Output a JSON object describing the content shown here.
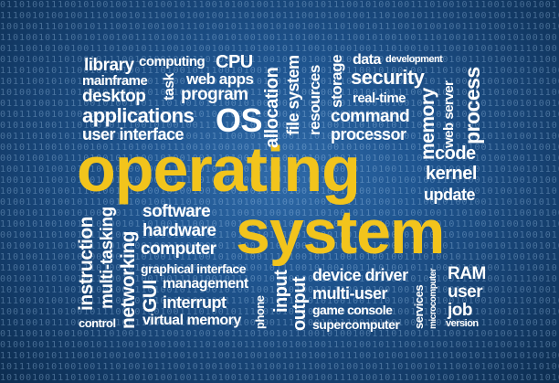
{
  "background": {
    "binary_text": "0110100111001010010011101001011100101001001110100101110010100100111010010111001010010011101001011100101001001110100101110010100100111010010111001010010011101001"
  },
  "colors": {
    "background": "#1f5590",
    "word_white": "#ffffff",
    "word_yellow": "#f2c41c"
  },
  "words": {
    "library": "library",
    "computing": "computing",
    "cpu": "CPU",
    "mainframe": "mainframe",
    "task": "task",
    "web_apps": "web apps",
    "desktop": "desktop",
    "program": "program",
    "os": "OS",
    "applications": "applications",
    "user_interface": "user interface",
    "allocation": "allocation",
    "file_system": "file system",
    "resources": "resources",
    "storage": "storage",
    "data": "data",
    "development": "development",
    "security": "security",
    "real_time": "real-time",
    "command": "command",
    "processor": "processor",
    "memory": "memory",
    "web_server": "web server",
    "process": "process",
    "operating": "operating",
    "code": "code",
    "kernel": "kernel",
    "update": "update",
    "instruction": "instruction",
    "multi_tasking": "multi-tasking",
    "networking": "networking",
    "software": "software",
    "hardware": "hardware",
    "computer": "computer",
    "system": "system",
    "graphical_interface": "graphical interface",
    "management": "management",
    "gui": "GUI",
    "interrupt": "interrupt",
    "phone": "phone",
    "input": "input",
    "output": "output",
    "device_driver": "device driver",
    "multi_user": "multi-user",
    "game_console": "game console",
    "supercomputer": "supercomputer",
    "services": "services",
    "microcomputer": "microcomputer",
    "ram": "RAM",
    "user": "user",
    "job": "job",
    "version": "version",
    "control": "control",
    "virtual_memory": "virtual memory"
  }
}
